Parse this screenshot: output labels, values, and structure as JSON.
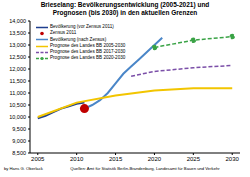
{
  "chart_data": {
    "type": "line",
    "title": "Brieselang:  Bevölkerungsentwicklung (2005-2021) und Prognosen (bis 2030) in den aktuellen Grenzen",
    "author": "by Hans G. Oberlack",
    "source": "Quellen: Amt für Statistik Berlin-Brandenburg, Landesamt für Bauen und Verkehr",
    "xlim": [
      2004,
      2031
    ],
    "xticks": [
      2005,
      2010,
      2015,
      2020,
      2025,
      2030
    ],
    "ylim": [
      8500,
      14000
    ],
    "yticks": [
      {
        "value": 8500,
        "label": "8,500"
      },
      {
        "value": 9000,
        "label": "9,000"
      },
      {
        "value": 9500,
        "label": "9,500"
      },
      {
        "value": 10000,
        "label": "10,000"
      },
      {
        "value": 10500,
        "label": "10,500"
      },
      {
        "value": 11000,
        "label": "11,000"
      },
      {
        "value": 11500,
        "label": "11,500"
      },
      {
        "value": 12000,
        "label": "12,000"
      },
      {
        "value": 12500,
        "label": "12,500"
      },
      {
        "value": 13000,
        "label": "13,000"
      },
      {
        "value": 13500,
        "label": "13,500"
      },
      {
        "value": 14000,
        "label": "14,000"
      }
    ],
    "grid": false,
    "legend": "upper left",
    "series": [
      {
        "name": "Bevölkerung (vor Zensus 2011)",
        "color": "#1f3f8f",
        "x": [
          2005,
          2006,
          2007,
          2008,
          2009,
          2010,
          2011
        ],
        "values": [
          9950,
          10050,
          10200,
          10350,
          10450,
          10550,
          10600
        ],
        "marker": "none",
        "line_style": "solid"
      },
      {
        "name": "Zensus 2011",
        "type": "scatter",
        "color": "#c00000",
        "x": [
          2011
        ],
        "values": [
          10350
        ],
        "marker": "circle"
      },
      {
        "name": "Bevölkerung (nach Zensus)",
        "color": "#4a86c8",
        "x": [
          2011,
          2012,
          2013,
          2014,
          2015,
          2016,
          2017,
          2018,
          2019,
          2020,
          2021
        ],
        "values": [
          10350,
          10500,
          10700,
          11000,
          11400,
          11800,
          12100,
          12400,
          12700,
          13000,
          13300
        ],
        "marker": "none",
        "line_style": "solid"
      },
      {
        "name": "Prognose des Landes BB 2005-2030",
        "color": "#f2c500",
        "x": [
          2005,
          2010,
          2015,
          2020,
          2025,
          2030
        ],
        "values": [
          10000,
          10600,
          10900,
          11100,
          11200,
          11200
        ],
        "marker": "none",
        "line_style": "solid"
      },
      {
        "name": "Prognose des Landes BB 2017-2030",
        "color": "#7b4fa8",
        "x": [
          2017,
          2020,
          2025,
          2030
        ],
        "values": [
          11700,
          11900,
          12050,
          12150
        ],
        "marker": "none",
        "line_style": "dashed"
      },
      {
        "name": "Prognose des Landes BB 2020-2030",
        "color": "#3aa346",
        "x": [
          2020,
          2025,
          2030
        ],
        "values": [
          12900,
          13200,
          13350
        ],
        "marker": "circle",
        "line_style": "dashed"
      }
    ]
  }
}
